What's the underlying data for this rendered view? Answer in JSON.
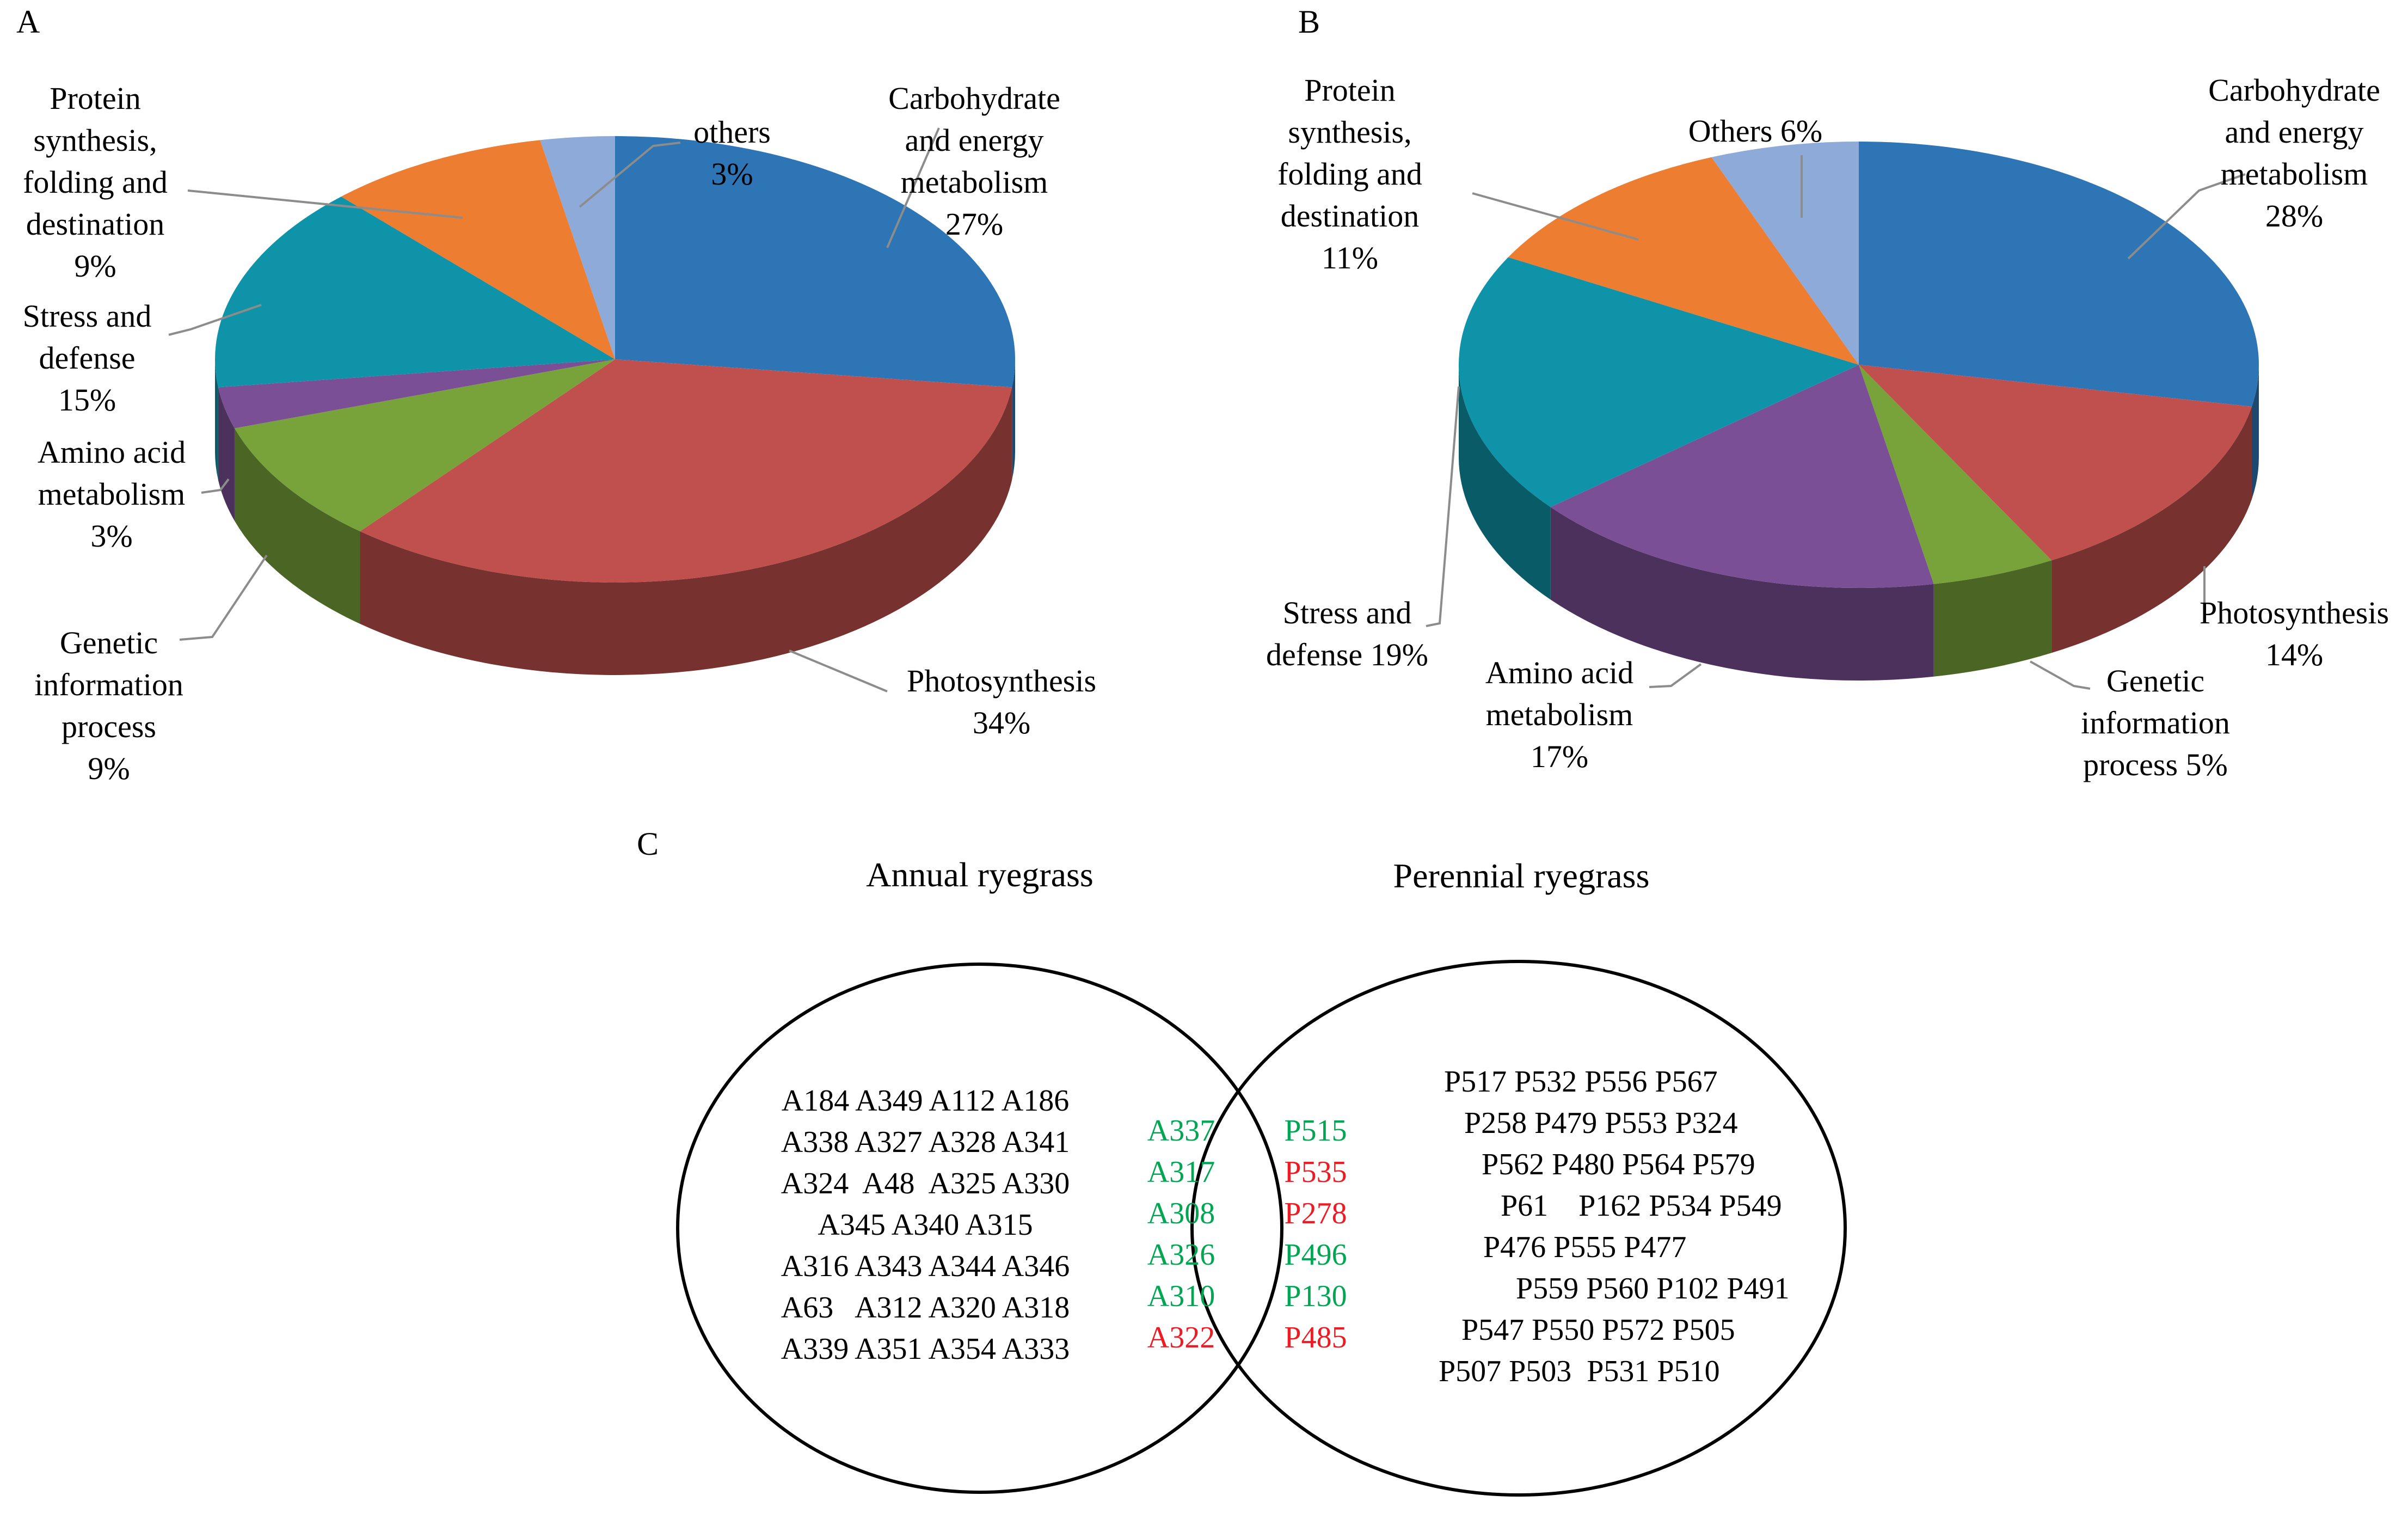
{
  "chart_data": [
    {
      "panel": "A",
      "type": "pie",
      "title": "",
      "slices": [
        {
          "name": "Carbohydrate and energy metabolism",
          "label_lines": [
            "Carbohydrate",
            "and energy",
            "metabolism",
            "27%"
          ],
          "value": 27,
          "color": "#2e75b6"
        },
        {
          "name": "Photosynthesis",
          "label_lines": [
            "Photosynthesis",
            "34%"
          ],
          "value": 34,
          "color": "#c0504d"
        },
        {
          "name": "Genetic information process",
          "label_lines": [
            "Genetic",
            "information",
            "process",
            "9%"
          ],
          "value": 9,
          "color": "#77a33a"
        },
        {
          "name": "Amino acid metabolism",
          "label_lines": [
            "Amino acid",
            "metabolism",
            "3%"
          ],
          "value": 3,
          "color": "#7a4f95"
        },
        {
          "name": "Stress and defense",
          "label_lines": [
            "Stress and",
            "defense",
            "15%"
          ],
          "value": 15,
          "color": "#0f93a8"
        },
        {
          "name": "Protein synthesis, folding and destination",
          "label_lines": [
            "Protein",
            "synthesis,",
            "folding and",
            "destination",
            "9%"
          ],
          "value": 9,
          "color": "#ed7d31"
        },
        {
          "name": "others",
          "label_lines": [
            "others",
            "3%"
          ],
          "value": 3,
          "color": "#8eaad8"
        }
      ]
    },
    {
      "panel": "B",
      "type": "pie",
      "title": "",
      "slices": [
        {
          "name": "Carbohydrate and energy metabolism",
          "label_lines": [
            "Carbohydrate",
            "and energy",
            "metabolism",
            "28%"
          ],
          "value": 28,
          "color": "#2e75b6"
        },
        {
          "name": "Photosynthesis",
          "label_lines": [
            "Photosynthesis",
            "14%"
          ],
          "value": 14,
          "color": "#c0504d"
        },
        {
          "name": "Genetic information process",
          "label_lines": [
            "Genetic",
            "information",
            "process 5%"
          ],
          "value": 5,
          "color": "#77a33a"
        },
        {
          "name": "Amino acid metabolism",
          "label_lines": [
            "Amino acid",
            "metabolism",
            "17%"
          ],
          "value": 17,
          "color": "#7a4f95"
        },
        {
          "name": "Stress and defense",
          "label_lines": [
            "Stress and",
            "defense 19%"
          ],
          "value": 19,
          "color": "#0f93a8"
        },
        {
          "name": "Protein synthesis, folding and destination",
          "label_lines": [
            "Protein",
            "synthesis,",
            "folding     and",
            "destination",
            "11%"
          ],
          "value": 11,
          "color": "#ed7d31"
        },
        {
          "name": "Others",
          "label_lines": [
            "Others 6%"
          ],
          "value": 6,
          "color": "#8eaad8"
        }
      ]
    }
  ],
  "venn": {
    "panel": "C",
    "left_title": "Annual ryegrass",
    "right_title": "Perennial ryegrass",
    "left_only": [
      "A184 A349 A112 A186",
      "A338 A327 A328 A341",
      "A324  A48  A325 A330",
      "A345 A340 A315",
      "A316 A343 A344 A346",
      "A63   A312 A320 A318",
      "A339 A351 A354 A333"
    ],
    "overlap_left": [
      {
        "id": "A337",
        "color": "#00a651"
      },
      {
        "id": "A317",
        "color": "#00a651"
      },
      {
        "id": "A308",
        "color": "#00a651"
      },
      {
        "id": "A326",
        "color": "#00a651"
      },
      {
        "id": "A310",
        "color": "#00a651"
      },
      {
        "id": "A322",
        "color": "#ed1c24"
      }
    ],
    "overlap_right": [
      {
        "id": "P515",
        "color": "#00a651"
      },
      {
        "id": "P535",
        "color": "#ed1c24"
      },
      {
        "id": "P278",
        "color": "#ed1c24"
      },
      {
        "id": "P496",
        "color": "#00a651"
      },
      {
        "id": "P130",
        "color": "#00a651"
      },
      {
        "id": "P485",
        "color": "#ed1c24"
      }
    ],
    "right_only": [
      "P517 P532 P556 P567",
      "P258 P479 P553 P324",
      "P562 P480 P564 P579",
      "P61    P162 P534 P549",
      "P476 P555 P477",
      "P559 P560 P102 P491",
      "P547 P550 P572 P505",
      "P507 P503  P531 P510"
    ]
  }
}
